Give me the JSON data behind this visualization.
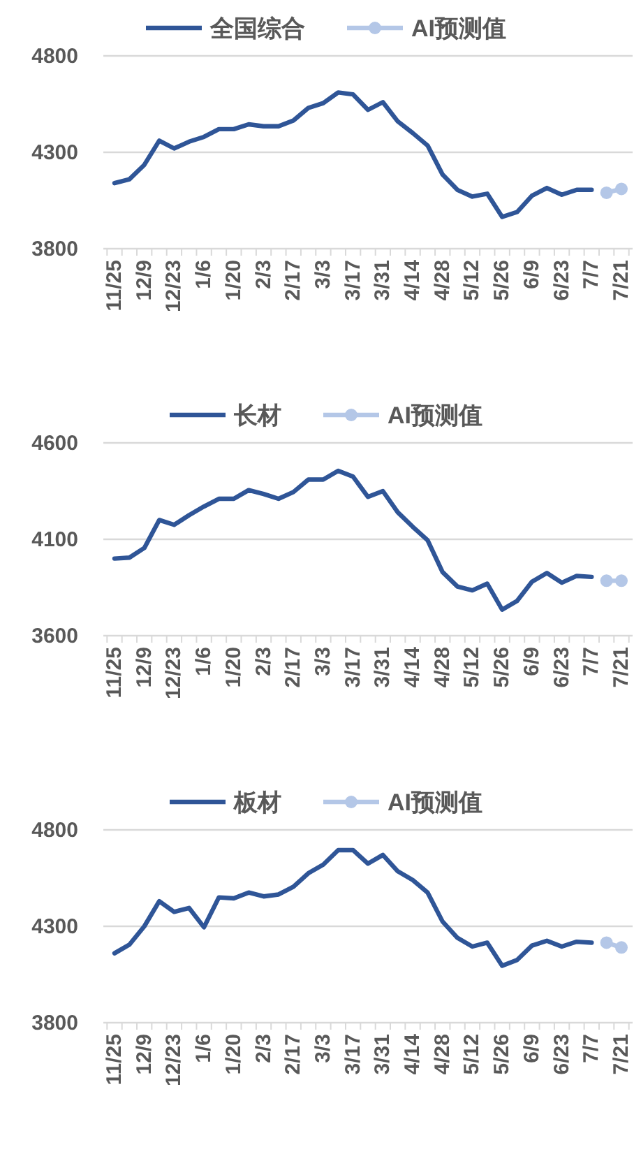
{
  "chart_data": [
    {
      "type": "line",
      "categories": [
        "11/25",
        null,
        "12/9",
        null,
        "12/23",
        null,
        "1/6",
        null,
        "1/20",
        null,
        "2/3",
        null,
        "2/17",
        null,
        "3/3",
        null,
        "3/17",
        null,
        "3/31",
        null,
        "4/14",
        null,
        "4/28",
        null,
        "5/12",
        null,
        "5/26",
        null,
        "6/9",
        null,
        "6/23",
        null,
        "7/7",
        null,
        "7/21"
      ],
      "series": [
        {
          "name": "全国综合",
          "color": "#2f5597",
          "marker": "none",
          "values": [
            4140,
            4160,
            4235,
            4360,
            4320,
            4355,
            4380,
            4420,
            4420,
            4445,
            4435,
            4435,
            4465,
            4530,
            4555,
            4610,
            4600,
            4520,
            4560,
            4460,
            4400,
            4335,
            4185,
            4105,
            4070,
            4085,
            3965,
            3990,
            4075,
            4115,
            4080,
            4105,
            4105,
            null,
            null
          ]
        },
        {
          "name": "AI预测值",
          "color": "#b4c7e7",
          "marker": "circle",
          "values": [
            null,
            null,
            null,
            null,
            null,
            null,
            null,
            null,
            null,
            null,
            null,
            null,
            null,
            null,
            null,
            null,
            null,
            null,
            null,
            null,
            null,
            null,
            null,
            null,
            null,
            null,
            null,
            null,
            null,
            null,
            null,
            null,
            null,
            4090,
            4110
          ]
        }
      ],
      "ylim": [
        3800,
        4800
      ],
      "yticks": [
        3800,
        4300,
        4800
      ],
      "grid": "y",
      "legend": "top"
    },
    {
      "type": "line",
      "categories": [
        "11/25",
        null,
        "12/9",
        null,
        "12/23",
        null,
        "1/6",
        null,
        "1/20",
        null,
        "2/3",
        null,
        "2/17",
        null,
        "3/3",
        null,
        "3/17",
        null,
        "3/31",
        null,
        "4/14",
        null,
        "4/28",
        null,
        "5/12",
        null,
        "5/26",
        null,
        "6/9",
        null,
        "6/23",
        null,
        "7/7",
        null,
        "7/21"
      ],
      "series": [
        {
          "name": "长材",
          "color": "#2f5597",
          "marker": "none",
          "values": [
            4000,
            4005,
            4055,
            4200,
            4175,
            4225,
            4270,
            4310,
            4310,
            4355,
            4335,
            4310,
            4345,
            4410,
            4410,
            4455,
            4425,
            4320,
            4350,
            4240,
            4165,
            4095,
            3930,
            3855,
            3835,
            3870,
            3735,
            3780,
            3880,
            3925,
            3875,
            3910,
            3905,
            null,
            null
          ]
        },
        {
          "name": "AI预测值",
          "color": "#b4c7e7",
          "marker": "circle",
          "values": [
            null,
            null,
            null,
            null,
            null,
            null,
            null,
            null,
            null,
            null,
            null,
            null,
            null,
            null,
            null,
            null,
            null,
            null,
            null,
            null,
            null,
            null,
            null,
            null,
            null,
            null,
            null,
            null,
            null,
            null,
            null,
            null,
            null,
            3885,
            3885
          ]
        }
      ],
      "ylim": [
        3600,
        4600
      ],
      "yticks": [
        3600,
        4100,
        4600
      ],
      "grid": "y",
      "legend": "top"
    },
    {
      "type": "line",
      "categories": [
        "11/25",
        null,
        "12/9",
        null,
        "12/23",
        null,
        "1/6",
        null,
        "1/20",
        null,
        "2/3",
        null,
        "2/17",
        null,
        "3/3",
        null,
        "3/17",
        null,
        "3/31",
        null,
        "4/14",
        null,
        "4/28",
        null,
        "5/12",
        null,
        "5/26",
        null,
        "6/9",
        null,
        "6/23",
        null,
        "7/7",
        null,
        "7/21"
      ],
      "series": [
        {
          "name": "板材",
          "color": "#2f5597",
          "marker": "none",
          "values": [
            4160,
            4205,
            4300,
            4430,
            4375,
            4395,
            4295,
            4450,
            4445,
            4475,
            4455,
            4465,
            4505,
            4575,
            4620,
            4695,
            4695,
            4625,
            4670,
            4585,
            4540,
            4475,
            4325,
            4240,
            4195,
            4215,
            4095,
            4125,
            4200,
            4225,
            4195,
            4220,
            4215,
            null,
            null
          ]
        },
        {
          "name": "AI预测值",
          "color": "#b4c7e7",
          "marker": "circle",
          "values": [
            null,
            null,
            null,
            null,
            null,
            null,
            null,
            null,
            null,
            null,
            null,
            null,
            null,
            null,
            null,
            null,
            null,
            null,
            null,
            null,
            null,
            null,
            null,
            null,
            null,
            null,
            null,
            null,
            null,
            null,
            null,
            null,
            null,
            4215,
            4190
          ]
        }
      ],
      "ylim": [
        3800,
        4800
      ],
      "yticks": [
        3800,
        4300,
        4800
      ],
      "grid": "y",
      "legend": "top"
    }
  ]
}
